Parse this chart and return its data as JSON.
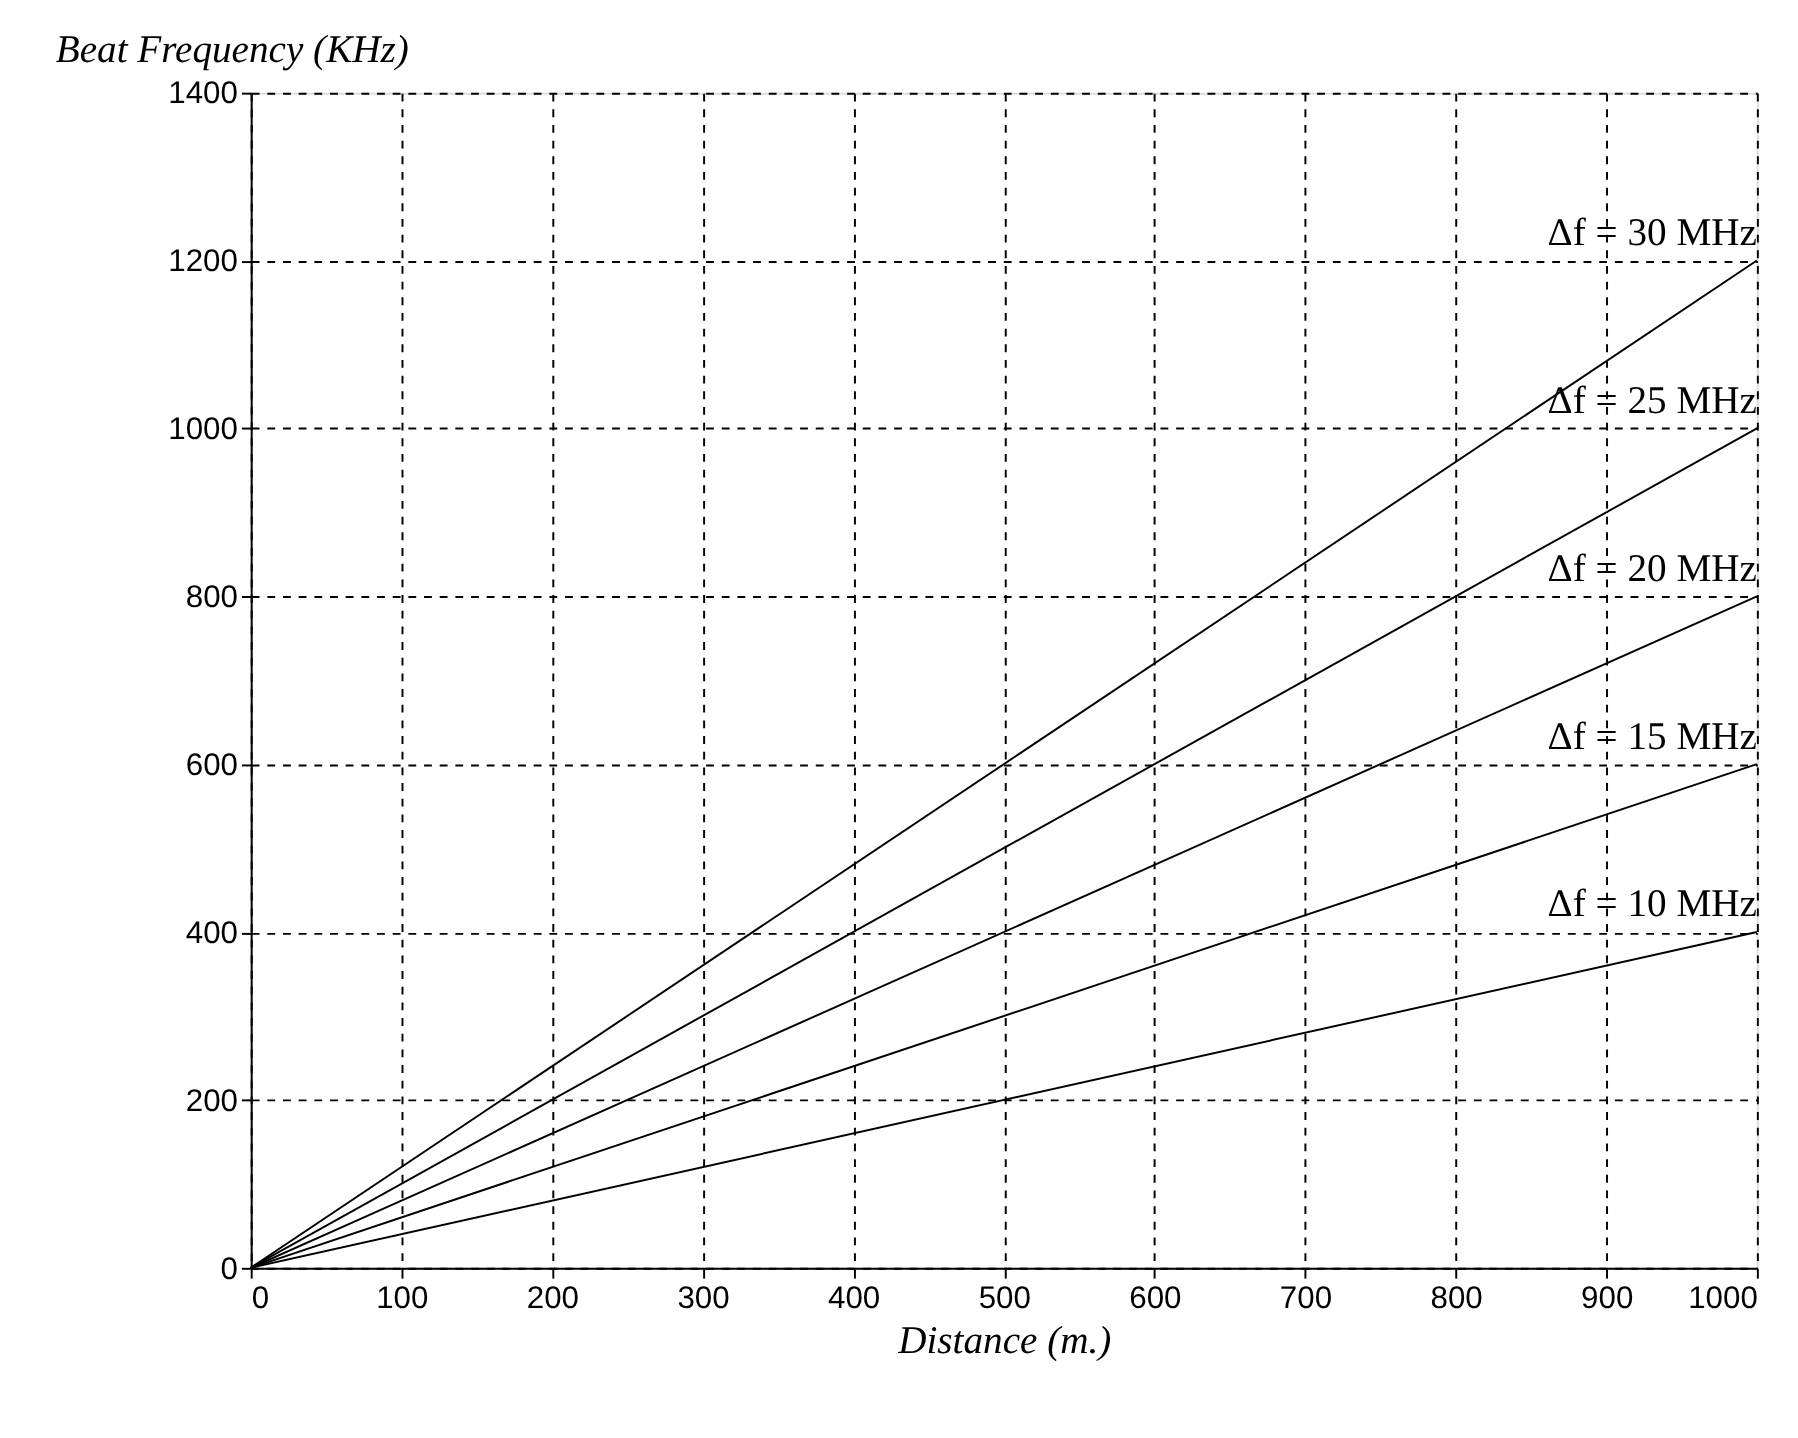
{
  "chart_data": {
    "type": "line",
    "xlabel": "Distance (m.)",
    "ylabel": "Beat Frequency (KHz)",
    "x": [
      0,
      1000
    ],
    "series": [
      {
        "name": "Δf = 30 MHz",
        "color": "#000000",
        "values": [
          0,
          1200
        ]
      },
      {
        "name": "Δf = 25 MHz",
        "color": "#000000",
        "values": [
          0,
          1000
        ]
      },
      {
        "name": "Δf = 20 MHz",
        "color": "#000000",
        "values": [
          0,
          800
        ]
      },
      {
        "name": "Δf = 15 MHz",
        "color": "#000000",
        "values": [
          0,
          600
        ]
      },
      {
        "name": "Δf = 10 MHz",
        "color": "#000000",
        "values": [
          0,
          400
        ]
      }
    ],
    "xlim": [
      0,
      1000
    ],
    "xticks": [
      0,
      100,
      200,
      300,
      400,
      500,
      600,
      700,
      800,
      900,
      1000
    ],
    "ylim": [
      0,
      1400
    ],
    "yticks": [
      0,
      200,
      400,
      600,
      800,
      1000,
      1200,
      1400
    ],
    "grid": true,
    "line_style": "solid",
    "marker": "none",
    "legend": false
  }
}
